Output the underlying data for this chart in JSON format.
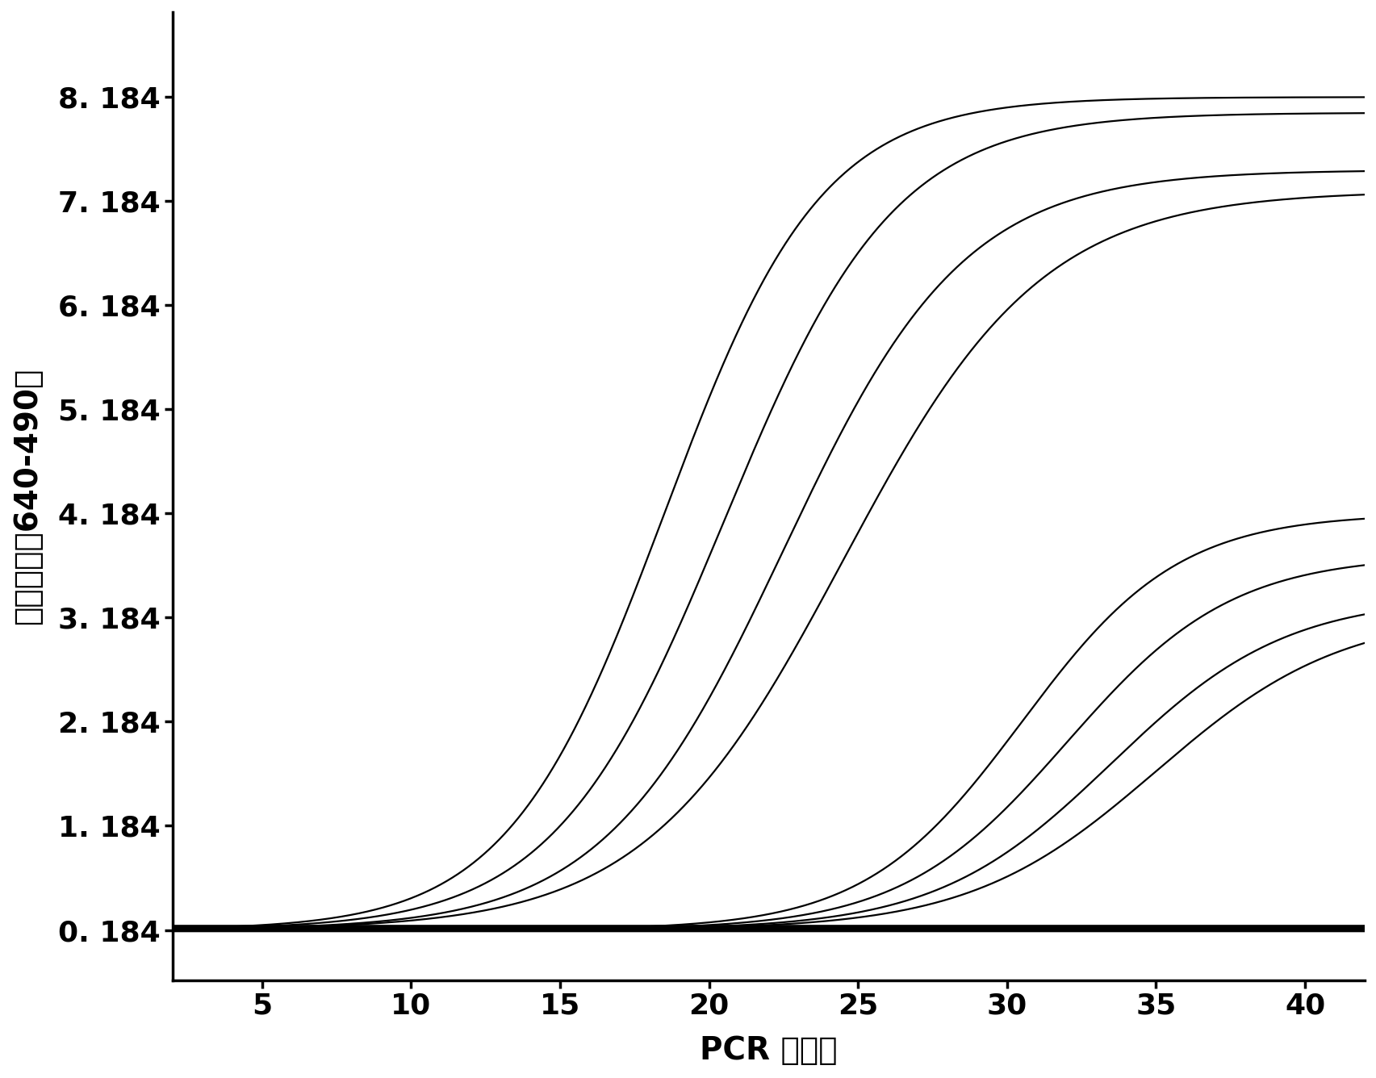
{
  "xlabel": "PCR 循环数",
  "ylabel": "荧光强度（640-490）",
  "xlim": [
    2,
    42
  ],
  "ylim": [
    -0.3,
    9.0
  ],
  "yticks": [
    0.184,
    1.184,
    2.184,
    3.184,
    4.184,
    5.184,
    6.184,
    7.184,
    8.184
  ],
  "ytick_labels": [
    "0. 184",
    "1. 184",
    "2. 184",
    "3. 184",
    "4. 184",
    "5. 184",
    "6. 184",
    "7. 184",
    "8. 184"
  ],
  "xticks": [
    5,
    10,
    15,
    20,
    25,
    30,
    35,
    40
  ],
  "background": "#ffffff",
  "line_color": "#000000",
  "high_curves": [
    {
      "L": 8.0,
      "k": 0.38,
      "x0": 18.5
    },
    {
      "L": 7.85,
      "k": 0.35,
      "x0": 20.5
    },
    {
      "L": 7.3,
      "k": 0.33,
      "x0": 22.5
    },
    {
      "L": 7.1,
      "k": 0.3,
      "x0": 24.5
    }
  ],
  "low_curves": [
    {
      "L": 4.0,
      "k": 0.38,
      "x0": 30.5
    },
    {
      "L": 3.6,
      "k": 0.36,
      "x0": 32.0
    },
    {
      "L": 3.2,
      "k": 0.34,
      "x0": 33.5
    },
    {
      "L": 3.05,
      "k": 0.32,
      "x0": 35.0
    }
  ],
  "baseline": 0.184,
  "n_flat_lines": 10,
  "figsize": [
    17.06,
    13.36
  ],
  "dpi": 100,
  "linewidth_curve": 1.6,
  "linewidth_flat": 4.0,
  "fontsize_label": 28,
  "fontsize_tick": 26
}
